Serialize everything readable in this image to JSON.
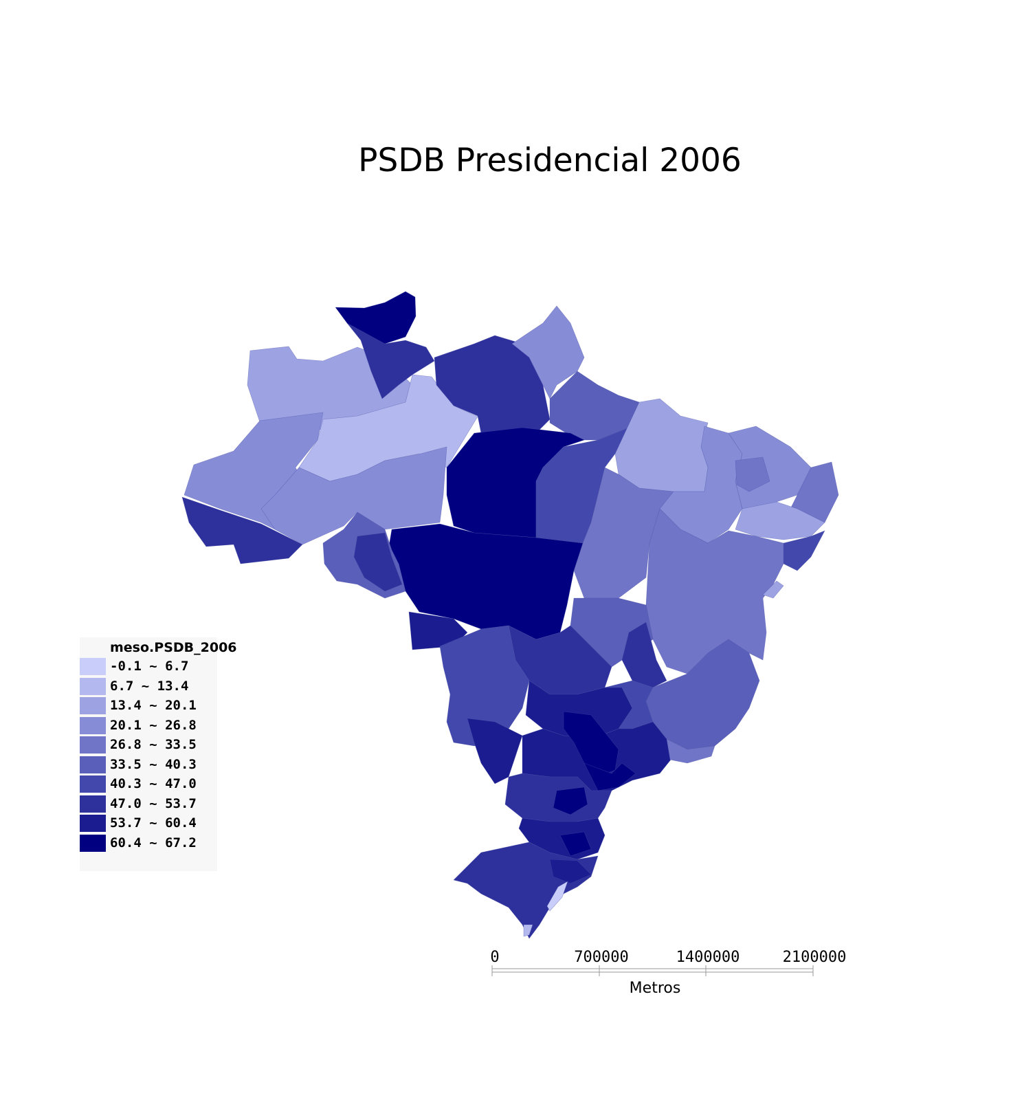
{
  "title": "PSDB Presidencial 2006",
  "legend": {
    "title": "meso.PSDB_2006",
    "classes": [
      {
        "label": "-0.1 ~ 6.7",
        "color": "#c8cdfa"
      },
      {
        "label": "6.7 ~ 13.4",
        "color": "#b3b8ee"
      },
      {
        "label": "13.4 ~ 20.1",
        "color": "#9da3e2"
      },
      {
        "label": "20.1 ~ 26.8",
        "color": "#868cd6"
      },
      {
        "label": "26.8 ~ 33.5",
        "color": "#7075c7"
      },
      {
        "label": "33.5 ~ 40.3",
        "color": "#5a5fb9"
      },
      {
        "label": "40.3 ~ 47.0",
        "color": "#4348ac"
      },
      {
        "label": "47.0 ~ 53.7",
        "color": "#2e319c"
      },
      {
        "label": "53.7 ~ 60.4",
        "color": "#1a1c8f"
      },
      {
        "label": "60.4 ~ 67.2",
        "color": "#000080"
      }
    ]
  },
  "scale_bar": {
    "ticks": [
      "0",
      "700000",
      "1400000",
      "2100000"
    ],
    "unit": "Metros"
  }
}
